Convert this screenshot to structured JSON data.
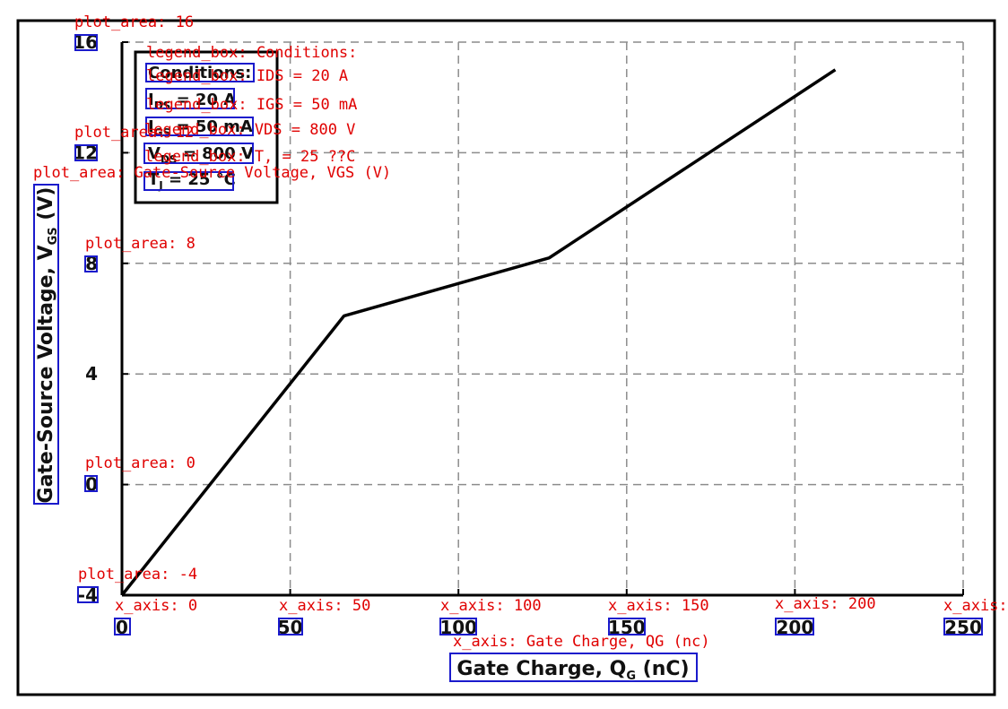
{
  "chart_data": {
    "type": "line",
    "xlabel": "Gate Charge, QG (nC)",
    "ylabel": "Gate-Source Voltage, VGS (V)",
    "xlim": [
      0,
      250
    ],
    "ylim": [
      -4,
      16
    ],
    "x_ticks": [
      0,
      50,
      100,
      150,
      200,
      250
    ],
    "y_ticks": [
      -4,
      0,
      4,
      8,
      12,
      16
    ],
    "grid": true,
    "series": [
      {
        "x": [
          0,
          66,
          127,
          212
        ],
        "y": [
          -4,
          6.1,
          8.2,
          15
        ]
      }
    ],
    "legend": {
      "placement": "top-left",
      "entries": [
        "Conditions:",
        "IDS = 20 A",
        "IGS = 50 mA",
        "VDS = 800 V",
        "TJ = 25 °C"
      ]
    }
  },
  "annotations": {
    "x_ticks": [
      "x_axis: 0",
      "x_axis: 50",
      "x_axis: 100",
      "x_axis: 150",
      "x_axis: 200",
      "x_axis:"
    ],
    "y_ticks": [
      "plot_area: -4",
      "plot_area: 0",
      "plot_area: 8",
      "plot_area: 12",
      "plot_area: 16"
    ],
    "y_title": "plot_area: Gate-Source Voltage, VGS (V)",
    "x_title": "x_axis: Gate Charge, QG (nc)",
    "legend": [
      "legend_box: Conditions:",
      "legend_box: IDS = 20 A",
      "legend_box: IGS = 50 mA",
      "legend_box: VDS = 800 V",
      "legend_box: T, = 25 ??C"
    ]
  },
  "colors": {
    "line": "#000000",
    "grid": "#8c8c8c",
    "annotation": "#e00000",
    "bbox": "#1a1acc"
  }
}
